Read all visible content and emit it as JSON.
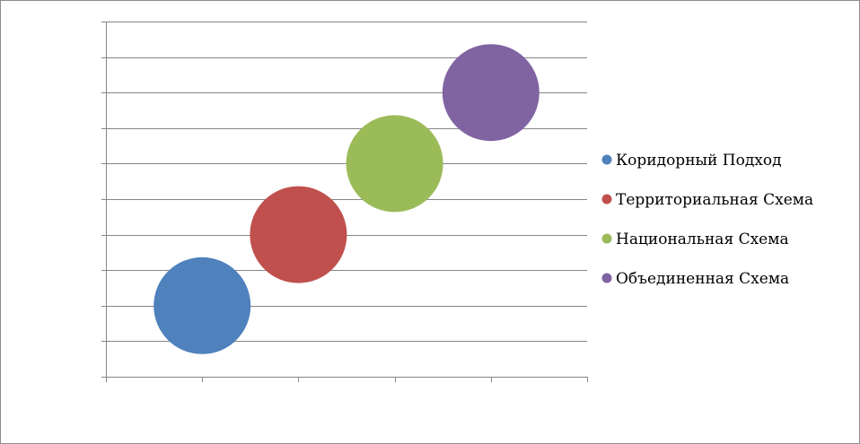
{
  "chart_data": {
    "type": "bubble",
    "title": "",
    "xlabel": "",
    "ylabel": "",
    "xlim": [
      0,
      5
    ],
    "ylim": [
      0,
      10
    ],
    "x_ticks": 5,
    "y_ticks": 10,
    "grid": {
      "horizontal": true,
      "vertical": false
    },
    "legend": "right",
    "series": [
      {
        "name": "Коридорный Подход",
        "x": 1,
        "y": 2,
        "size": 1,
        "color": "#4f81bd"
      },
      {
        "name": "Территориальная Схема",
        "x": 2,
        "y": 4,
        "size": 1,
        "color": "#c0504d"
      },
      {
        "name": "Национальная Схема",
        "x": 3,
        "y": 6,
        "size": 1,
        "color": "#9bbb59"
      },
      {
        "name": "Объединенная Схема",
        "x": 4,
        "y": 8,
        "size": 1,
        "color": "#8064a2"
      }
    ]
  }
}
